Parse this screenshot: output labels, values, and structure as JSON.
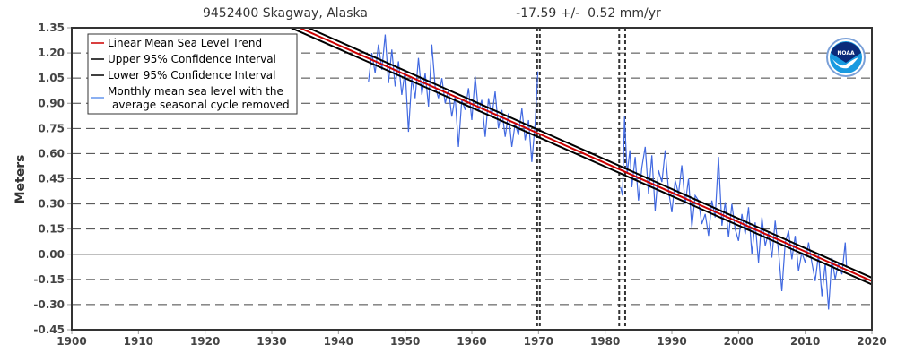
{
  "chart_data": {
    "type": "line",
    "title": "9452400 Skagway, Alaska",
    "subtitle": "-17.59 +/-  0.52 mm/yr",
    "xlabel": "",
    "ylabel": "Meters",
    "xlim": [
      1900,
      2020
    ],
    "ylim": [
      -0.45,
      1.35
    ],
    "x_ticks": [
      "1900",
      "1910",
      "1920",
      "1930",
      "1940",
      "1950",
      "1960",
      "1970",
      "1980",
      "1990",
      "2000",
      "2010",
      "2020"
    ],
    "y_ticks": [
      "1.35",
      "1.20",
      "1.05",
      "0.90",
      "0.75",
      "0.60",
      "0.45",
      "0.30",
      "0.15",
      "0.00",
      "-0.15",
      "-0.30",
      "-0.45"
    ],
    "grid": "horizontal dashed",
    "legend_position": "top-left",
    "logo": "NOAA",
    "colors": {
      "trend": "#cc0000",
      "ci": "#000000",
      "monthly": "#4169e1"
    },
    "legend": [
      "Linear Mean Sea Level Trend",
      "Upper 95% Confidence Interval",
      "Lower 95% Confidence Interval",
      "Monthly mean sea level with the",
      "average seasonal cycle removed"
    ],
    "trend": {
      "x": [
        1900,
        2020
      ],
      "y": [
        1.951,
        -0.16
      ]
    },
    "upper_ci": {
      "x": [
        1900,
        2020
      ],
      "y": [
        1.975,
        -0.14
      ]
    },
    "lower_ci": {
      "x": [
        1900,
        2020
      ],
      "y": [
        1.927,
        -0.18
      ]
    },
    "gap_markers": [
      1969.8,
      1970.2,
      1982.1,
      1983.0
    ],
    "monthly_segments": [
      {
        "x": [
          1944.5,
          1945,
          1945.5,
          1946,
          1946.5,
          1947,
          1947.5,
          1948,
          1948.5,
          1949,
          1949.5,
          1950,
          1950.5,
          1951,
          1951.5,
          1952,
          1952.5,
          1953,
          1953.5,
          1954,
          1954.5,
          1955,
          1955.5,
          1956,
          1956.5,
          1957,
          1957.5,
          1958,
          1958.5,
          1959,
          1959.5,
          1960,
          1960.5,
          1961,
          1961.5,
          1962,
          1962.5,
          1963,
          1963.5,
          1964,
          1964.5,
          1965,
          1965.5,
          1966,
          1966.5,
          1967,
          1967.5,
          1968,
          1968.5,
          1969,
          1969.5,
          1969.9
        ],
        "y": [
          1.03,
          1.2,
          1.08,
          1.25,
          1.1,
          1.31,
          1.02,
          1.22,
          1.0,
          1.15,
          0.95,
          1.1,
          0.73,
          1.05,
          0.93,
          1.17,
          0.95,
          1.08,
          0.88,
          1.25,
          1.0,
          0.93,
          1.05,
          0.9,
          0.98,
          0.82,
          0.94,
          0.64,
          0.92,
          0.86,
          0.99,
          0.8,
          1.06,
          0.85,
          0.92,
          0.7,
          0.93,
          0.82,
          0.97,
          0.75,
          0.86,
          0.7,
          0.84,
          0.64,
          0.78,
          0.71,
          0.87,
          0.68,
          0.8,
          0.55,
          0.78,
          1.09
        ]
      },
      {
        "x": [
          1982.3,
          1982.6,
          1982.9,
          1983.3,
          1983.7,
          1984,
          1984.5,
          1985,
          1985.5,
          1986,
          1986.5,
          1987,
          1987.5,
          1988,
          1988.5,
          1989,
          1989.5,
          1990,
          1990.5,
          1991,
          1991.5,
          1992,
          1992.5,
          1993,
          1993.5,
          1994,
          1994.5,
          1995,
          1995.5,
          1996,
          1996.5,
          1997,
          1997.5,
          1998,
          1998.5,
          1999,
          1999.5,
          2000,
          2000.5,
          2001,
          2001.5,
          2002,
          2002.5,
          2003,
          2003.5,
          2004,
          2004.5,
          2005,
          2005.5,
          2006,
          2006.5,
          2007,
          2007.5,
          2008,
          2008.5,
          2009,
          2009.5,
          2010,
          2010.5,
          2011,
          2011.5,
          2012,
          2012.5,
          2013,
          2013.5,
          2014,
          2014.5,
          2015,
          2015.5,
          2016,
          2016.2
        ],
        "y": [
          0.4,
          0.35,
          0.82,
          0.48,
          0.62,
          0.4,
          0.58,
          0.32,
          0.52,
          0.64,
          0.36,
          0.59,
          0.26,
          0.5,
          0.43,
          0.62,
          0.38,
          0.25,
          0.44,
          0.36,
          0.53,
          0.3,
          0.45,
          0.16,
          0.35,
          0.32,
          0.18,
          0.24,
          0.11,
          0.32,
          0.22,
          0.58,
          0.17,
          0.31,
          0.1,
          0.3,
          0.15,
          0.08,
          0.24,
          0.12,
          0.28,
          0.0,
          0.19,
          -0.05,
          0.22,
          0.05,
          0.13,
          -0.02,
          0.2,
          0.02,
          -0.22,
          0.07,
          0.14,
          -0.03,
          0.11,
          -0.1,
          0.01,
          -0.05,
          0.07,
          -0.05,
          -0.16,
          0.0,
          -0.25,
          -0.05,
          -0.33,
          -0.02,
          -0.15,
          -0.05,
          -0.12,
          0.07,
          -0.08
        ]
      }
    ]
  }
}
